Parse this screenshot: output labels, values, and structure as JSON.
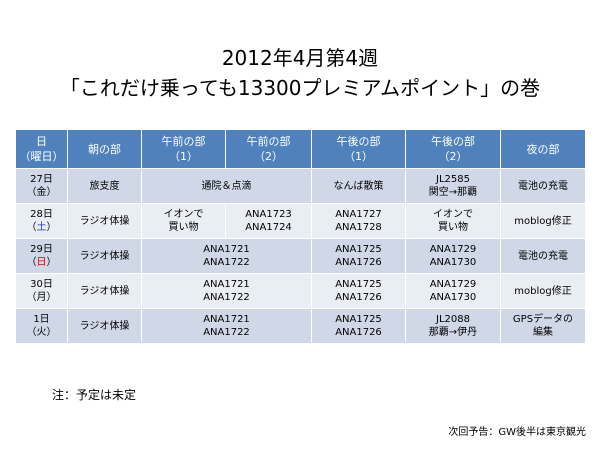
{
  "title": {
    "line1": "2012年4月第4週",
    "line2": "「これだけ乗っても13300プレミアムポイント」の巻"
  },
  "table": {
    "headers": [
      [
        "日",
        "（曜日）"
      ],
      [
        "朝の部",
        ""
      ],
      [
        "午前の部",
        "（1）"
      ],
      [
        "午前の部",
        "（2）"
      ],
      [
        "午後の部",
        "（1）"
      ],
      [
        "午後の部",
        "（2）"
      ],
      [
        "夜の部",
        ""
      ]
    ],
    "rows": [
      {
        "date": "27日",
        "weekday_open": "（",
        "weekday": "金",
        "weekday_close": "）",
        "morning": "旅支度",
        "am": "通院＆点滴",
        "pm1": "なんば散策",
        "pm2": [
          "JL2585",
          "関空→那覇"
        ],
        "night": "電池の充電"
      },
      {
        "date": "28日",
        "weekday_open": "（",
        "weekday": "土",
        "weekday_close": "）",
        "morning": "ラジオ体操",
        "am1": [
          "イオンで",
          "買い物"
        ],
        "am2": [
          "ANA1723",
          "ANA1724"
        ],
        "pm1": [
          "ANA1727",
          "ANA1728"
        ],
        "pm2": [
          "イオンで",
          "買い物"
        ],
        "night": "moblog修正"
      },
      {
        "date": "29日",
        "weekday_open": "（",
        "weekday": "日",
        "weekday_close": "）",
        "morning": "ラジオ体操",
        "am": [
          "ANA1721",
          "ANA1722"
        ],
        "pm1": [
          "ANA1725",
          "ANA1726"
        ],
        "pm2": [
          "ANA1729",
          "ANA1730"
        ],
        "night": "電池の充電"
      },
      {
        "date": "30日",
        "weekday_open": "（",
        "weekday": "月",
        "weekday_close": "）",
        "morning": "ラジオ体操",
        "am": [
          "ANA1721",
          "ANA1722"
        ],
        "pm1": [
          "ANA1725",
          "ANA1726"
        ],
        "pm2": [
          "ANA1729",
          "ANA1730"
        ],
        "night": "moblog修正"
      },
      {
        "date": "1日",
        "weekday_open": "（",
        "weekday": "火",
        "weekday_close": "）",
        "morning": "ラジオ体操",
        "am": [
          "ANA1721",
          "ANA1722"
        ],
        "pm1": [
          "ANA1725",
          "ANA1726"
        ],
        "pm2": [
          "JL2088",
          "那覇→伊丹"
        ],
        "night": [
          "GPSデータの",
          "編集"
        ]
      }
    ]
  },
  "note": "注：予定は未定",
  "next_preview": "次回予告：GW後半は東京観光",
  "colors": {
    "header_bg": "#4f81bd",
    "row_dark": "#d0d8e8",
    "row_light": "#e9edf4",
    "saturday": "#1f3bd6",
    "sunday": "#e00000"
  }
}
